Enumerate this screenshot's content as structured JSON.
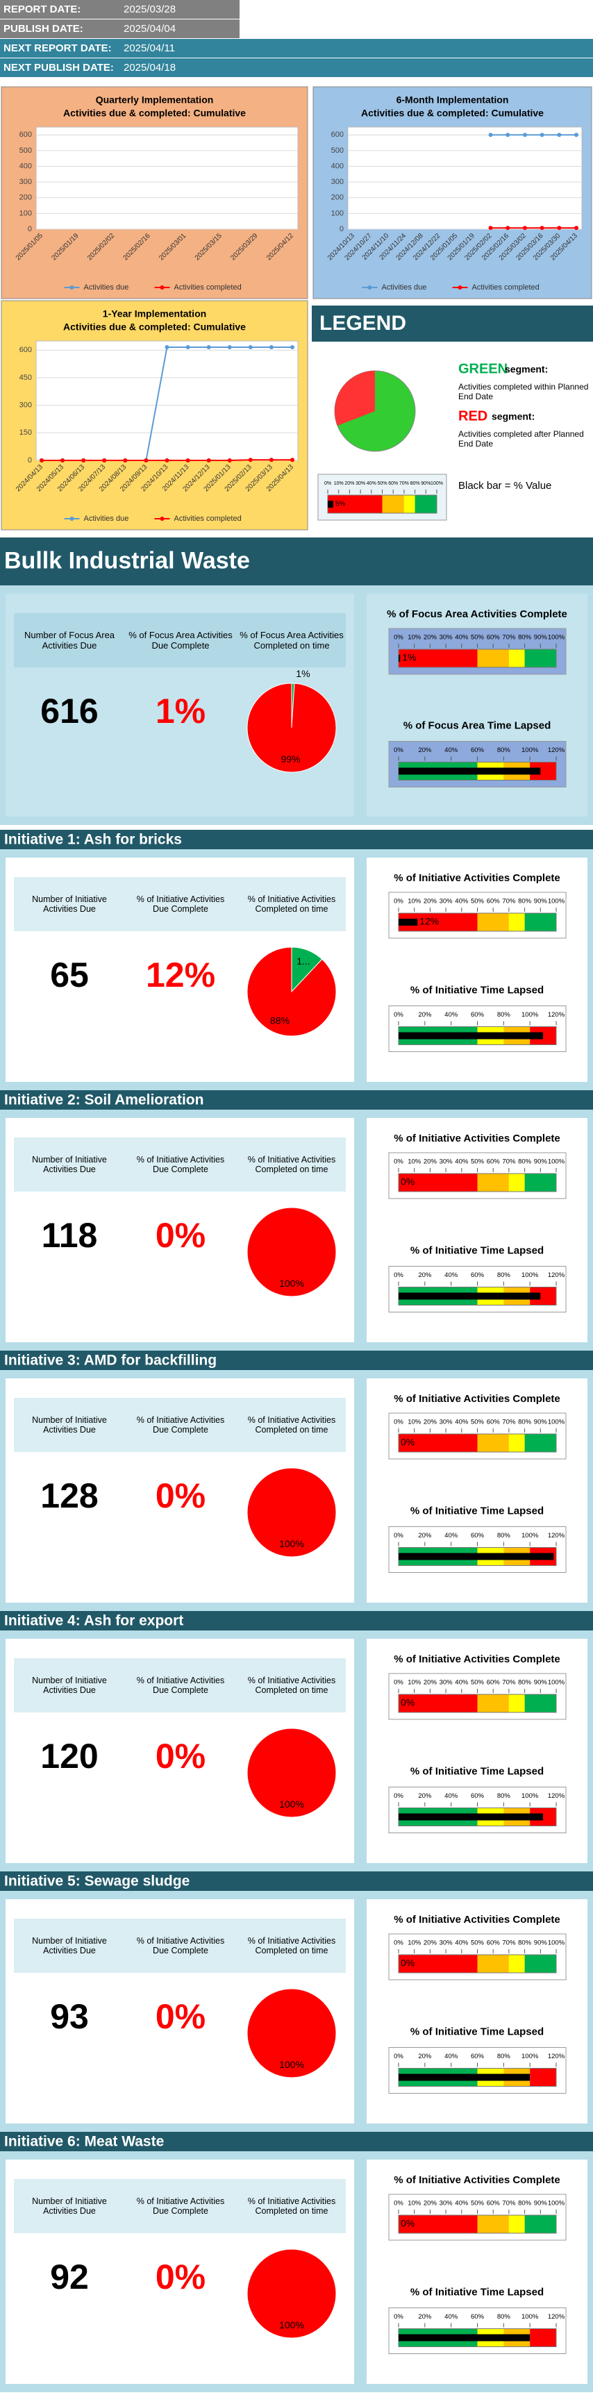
{
  "header": {
    "rows": [
      {
        "label": "REPORT DATE:",
        "value": "2025/03/28"
      },
      {
        "label": "PUBLISH DATE:",
        "value": "2025/04/04"
      },
      {
        "label": "NEXT REPORT DATE:",
        "value": "2025/04/11"
      },
      {
        "label": "NEXT PUBLISH DATE:",
        "value": "2025/04/18"
      }
    ]
  },
  "chart_data": [
    {
      "type": "line",
      "title": "Quarterly Implementation",
      "subtitle": "Activities due & completed: Cumulative",
      "categories": [
        "2025/01/05",
        "2025/01/19",
        "2025/02/02",
        "2025/02/16",
        "2025/03/01",
        "2025/03/15",
        "2025/03/29",
        "2025/04/12"
      ],
      "series": [
        {
          "name": "Activities due",
          "color": "#5b9bd5",
          "values": [
            null,
            null,
            null,
            null,
            null,
            null,
            null,
            null
          ]
        },
        {
          "name": "Activities completed",
          "color": "#ff0000",
          "values": [
            null,
            null,
            null,
            null,
            null,
            null,
            null,
            null
          ]
        }
      ],
      "ylim": [
        0,
        650
      ],
      "yticks": [
        0,
        100,
        200,
        300,
        400,
        500,
        600
      ],
      "grid": true
    },
    {
      "type": "line",
      "title": "6-Month Implementation",
      "subtitle": "Activities due & completed: Cumulative",
      "categories": [
        "2024/10/13",
        "2024/10/27",
        "2024/11/10",
        "2024/11/24",
        "2024/12/08",
        "2024/12/22",
        "2025/01/05",
        "2025/01/19",
        "2025/02/02",
        "2025/02/16",
        "2025/03/02",
        "2025/03/16",
        "2025/03/30",
        "2025/04/13"
      ],
      "series": [
        {
          "name": "Activities due",
          "color": "#5b9bd5",
          "values": [
            null,
            null,
            null,
            null,
            null,
            null,
            null,
            null,
            600,
            600,
            600,
            600,
            600,
            600
          ]
        },
        {
          "name": "Activities completed",
          "color": "#ff0000",
          "values": [
            null,
            null,
            null,
            null,
            null,
            null,
            null,
            null,
            8,
            8,
            8,
            8,
            8,
            8
          ]
        }
      ],
      "ylim": [
        0,
        650
      ],
      "yticks": [
        0,
        100,
        200,
        300,
        400,
        500,
        600
      ],
      "grid": true
    },
    {
      "type": "line",
      "title": "1-Year Implementation",
      "subtitle": "Activities due & completed: Cumulative",
      "categories": [
        "2024/04/13",
        "2024/05/13",
        "2024/06/13",
        "2024/07/13",
        "2024/08/13",
        "2024/09/13",
        "2024/10/13",
        "2024/11/13",
        "2024/12/13",
        "2025/01/13",
        "2025/02/13",
        "2025/03/13",
        "2025/04/13"
      ],
      "series": [
        {
          "name": "Activities due",
          "color": "#5b9bd5",
          "values": [
            0,
            0,
            0,
            0,
            0,
            0,
            616,
            616,
            616,
            616,
            616,
            616,
            616
          ]
        },
        {
          "name": "Activities completed",
          "color": "#ff0000",
          "values": [
            0,
            0,
            0,
            0,
            0,
            0,
            0,
            0,
            0,
            0,
            3,
            3,
            3
          ]
        }
      ],
      "ylim": [
        0,
        650
      ],
      "yticks": [
        0,
        150,
        300,
        450,
        600
      ],
      "grid": true
    }
  ],
  "legend": {
    "title": "LEGEND",
    "green": "GREEN",
    "green_suffix": "segment:",
    "green_text": "Activities completed within Planned End Date",
    "red": "RED",
    "red_suffix": "segment:",
    "red_text": "Activities completed after Planned End Date",
    "black_bar": "Black bar = % Value",
    "sample_value": 5,
    "sample_label": "5%"
  },
  "gauge_scales": {
    "complete": {
      "lim": [
        0,
        100
      ],
      "ticks": [
        {
          "value": 0,
          "label": "0%"
        },
        {
          "value": 10,
          "label": "10%"
        },
        {
          "value": 20,
          "label": "20%"
        },
        {
          "value": 30,
          "label": "30%"
        },
        {
          "value": 40,
          "label": "40%"
        },
        {
          "value": 50,
          "label": "50%"
        },
        {
          "value": 60,
          "label": "60%"
        },
        {
          "value": 70,
          "label": "70%"
        },
        {
          "value": 80,
          "label": "80%"
        },
        {
          "value": 90,
          "label": "90%"
        },
        {
          "value": 100,
          "label": "100%"
        }
      ]
    },
    "time": {
      "lim": [
        0,
        120
      ],
      "ticks": [
        {
          "value": 0,
          "label": "0%"
        },
        {
          "value": 20,
          "label": "20%"
        },
        {
          "value": 40,
          "label": "40%"
        },
        {
          "value": 60,
          "label": "60%"
        },
        {
          "value": 80,
          "label": "80%"
        },
        {
          "value": 100,
          "label": "100%"
        },
        {
          "value": 120,
          "label": "120%"
        }
      ]
    }
  },
  "focus_area": {
    "title": "Bullk Industrial Waste",
    "due_label": "Number of Focus Area Activities Due",
    "due": 616,
    "complete_label": "% of Focus Area Activities Due Complete",
    "complete": 1,
    "complete_value_label": "1%",
    "ontime_label": "% of Focus Area Activities Completed on time",
    "ontime": [
      1,
      99
    ],
    "ontime_labels": [
      "1%",
      "99%"
    ],
    "gauge_complete_title": "% of Focus Area Activities Complete",
    "gauge_time_title": "% of Focus Area Time Lapsed",
    "time_lapsed": 108
  },
  "initiatives": [
    {
      "title": "Initiative 1:  Ash for bricks",
      "due_label": "Number of Initiative Activities Due",
      "due": 65,
      "complete_label": "% of Initiative Activities Due Complete",
      "complete": 12,
      "complete_value_label": "12%",
      "ontime_label": "% of Initiative Activities Completed on time",
      "ontime": [
        12,
        88
      ],
      "ontime_labels": [
        "1...",
        "88%"
      ],
      "gauge_complete_title": "% of Initiative Activities Complete",
      "gauge_time_title": "% of Initiative Time Lapsed",
      "time_lapsed": 110
    },
    {
      "title": "Initiative 2:  Soil Amelioration",
      "due_label": "Number of Initiative Activities Due",
      "due": 118,
      "complete_label": "% of Initiative Activities Due Complete",
      "complete": 0,
      "complete_value_label": "0%",
      "ontime_label": "% of Initiative Activities Completed on time",
      "ontime": [
        0,
        100
      ],
      "ontime_labels": [
        "0%",
        "100%"
      ],
      "gauge_complete_title": "% of Initiative Activities Complete",
      "gauge_time_title": "% of Initiative Time Lapsed",
      "time_lapsed": 108
    },
    {
      "title": "Initiative 3:  AMD for backfilling",
      "due_label": "Number of Initiative Activities Due",
      "due": 128,
      "complete_label": "% of Initiative Activities Due Complete",
      "complete": 0,
      "complete_value_label": "0%",
      "ontime_label": "% of Initiative Activities Completed on time",
      "ontime": [
        0,
        100
      ],
      "ontime_labels": [
        "0...",
        "100%"
      ],
      "gauge_complete_title": "% of Initiative Activities Complete",
      "gauge_time_title": "% of Initiative Time Lapsed",
      "time_lapsed": 118
    },
    {
      "title": "Initiative 4:  Ash for export",
      "due_label": "Number of Initiative Activities Due",
      "due": 120,
      "complete_label": "% of Initiative Activities Due Complete",
      "complete": 0,
      "complete_value_label": "0%",
      "ontime_label": "% of Initiative Activities Completed on time",
      "ontime": [
        0,
        100
      ],
      "ontime_labels": [
        "0%",
        "100%"
      ],
      "gauge_complete_title": "% of Initiative Activities Complete",
      "gauge_time_title": "% of Initiative Time Lapsed",
      "time_lapsed": 110
    },
    {
      "title": "Initiative 5:  Sewage sludge",
      "due_label": "Number of Initiative Activities Due",
      "due": 93,
      "complete_label": "% of Initiative Activities Due Complete",
      "complete": 0,
      "complete_value_label": "0%",
      "ontime_label": "% of Initiative Activities Completed on time",
      "ontime": [
        0,
        100
      ],
      "ontime_labels": [
        "0%",
        "100%"
      ],
      "gauge_complete_title": "% of Initiative Activities Complete",
      "gauge_time_title": "% of Initiative Time Lapsed",
      "time_lapsed": 100
    },
    {
      "title": "Initiative 6:  Meat Waste",
      "due_label": "Number of Initiative Activities Due",
      "due": 92,
      "complete_label": "% of Initiative Activities Due Complete",
      "complete": 0,
      "complete_value_label": "0%",
      "ontime_label": "% of Initiative Activities Completed on time",
      "ontime": [
        0,
        100
      ],
      "ontime_labels": [
        "0%",
        "100%"
      ],
      "gauge_complete_title": "% of Initiative Activities Complete",
      "gauge_time_title": "% of Initiative Time Lapsed",
      "time_lapsed": 100
    }
  ]
}
